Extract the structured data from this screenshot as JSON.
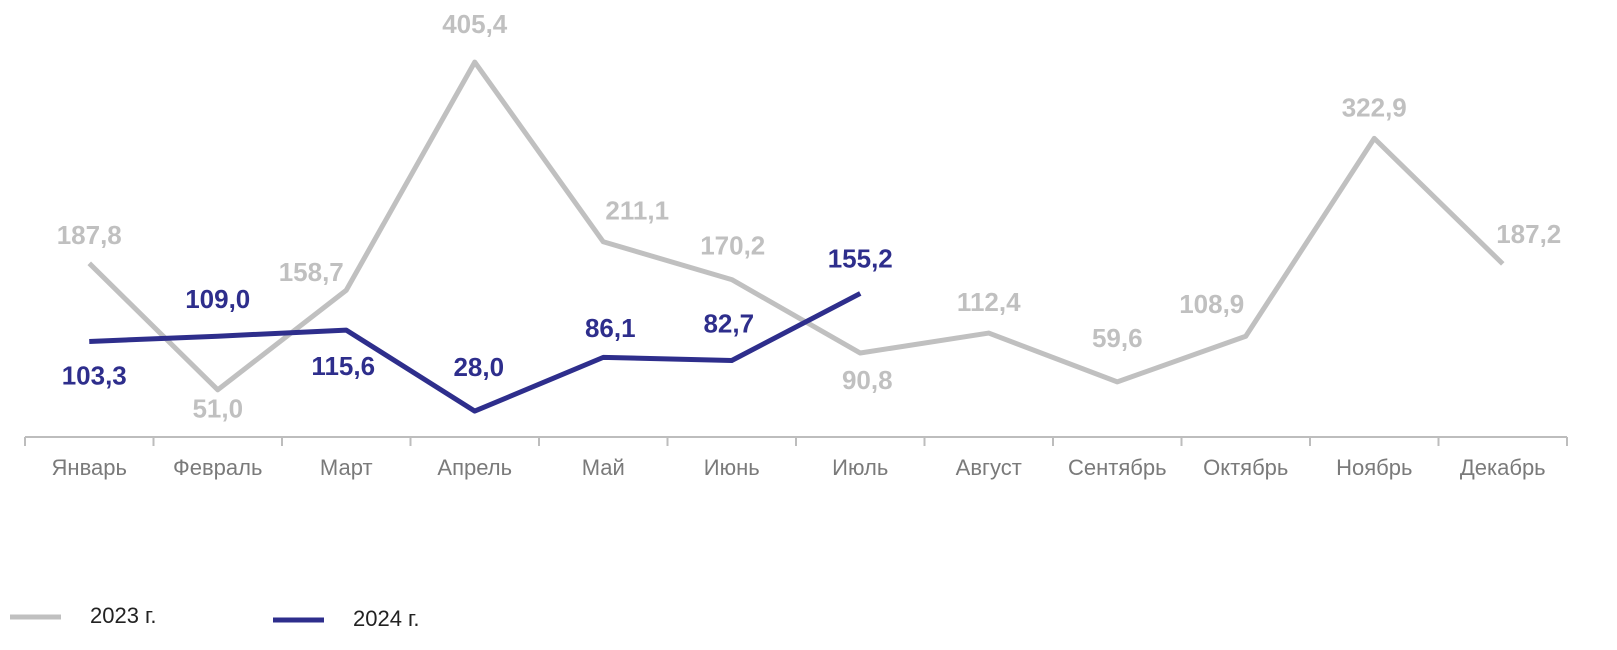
{
  "chart_data": {
    "type": "line",
    "categories": [
      "Январь",
      "Февраль",
      "Март",
      "Апрель",
      "Май",
      "Июнь",
      "Июль",
      "Август",
      "Сентябрь",
      "Октябрь",
      "Ноябрь",
      "Декабрь"
    ],
    "series": [
      {
        "name": "2023 г.",
        "color": "#c0c0c0",
        "values": [
          187.8,
          51.0,
          158.7,
          405.4,
          211.1,
          170.2,
          90.8,
          112.4,
          59.6,
          108.9,
          322.9,
          187.2
        ],
        "value_labels": [
          "187,8",
          "51,0",
          "158,7",
          "405,4",
          "211,1",
          "170,2",
          "90,8",
          "112,4",
          "59,6",
          "108,9",
          "322,9",
          "187,2"
        ]
      },
      {
        "name": "2024 г.",
        "color": "#2e2e8c",
        "values": [
          103.3,
          109.0,
          115.6,
          28.0,
          86.1,
          82.7,
          155.2,
          null,
          null,
          null,
          null,
          null
        ],
        "value_labels": [
          "103,3",
          "109,0",
          "115,6",
          "28,0",
          "86,1",
          "82,7",
          "155,2",
          null,
          null,
          null,
          null,
          null
        ]
      }
    ],
    "legend": "bottom"
  }
}
